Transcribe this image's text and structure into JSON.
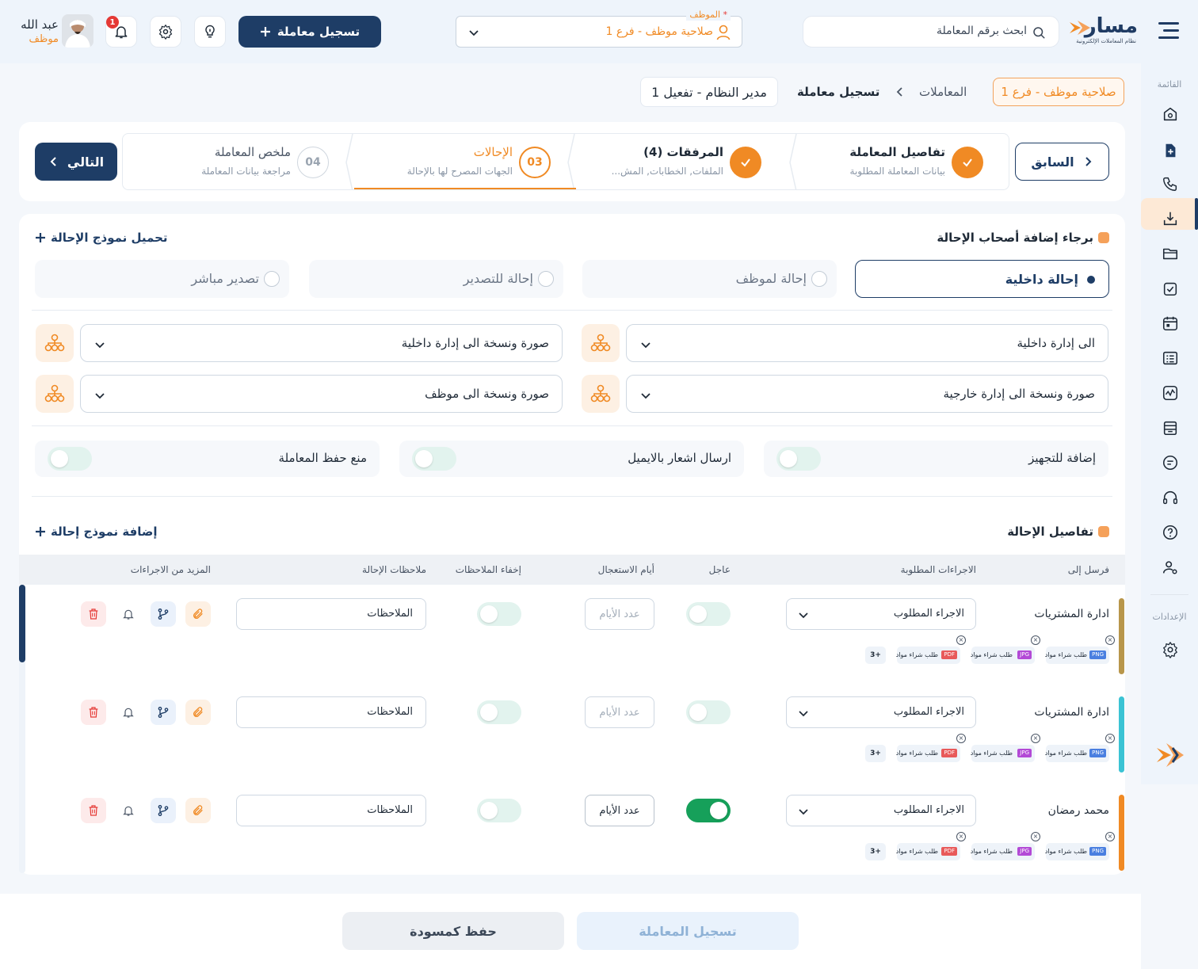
{
  "header": {
    "logo_text": "مسار",
    "logo_tagline": "نظام المعاملات الإلكترونية",
    "search_placeholder": "ابحث برقم المعاملة",
    "employee_field_label": "الموظف",
    "employee_field_value": "صلاحية موظف - فرع 1",
    "new_transaction_label": "تسجيل معاملة",
    "notifications_count": "1",
    "user_name": "عبد الله",
    "user_role": "موظف"
  },
  "sidebar": {
    "menu_caption": "القائمة",
    "settings_caption": "الإعدادات",
    "items": [
      "home-icon",
      "file-plus-icon",
      "phone-icon",
      "download-icon",
      "folder-icon",
      "clipboard-check-icon",
      "calendar-icon",
      "list-icon",
      "chart-icon",
      "archive-icon",
      "report-icon",
      "headset-icon",
      "help-icon",
      "users-settings-icon"
    ],
    "active_item": "file-plus-icon"
  },
  "breadcrumb": {
    "branch": "صلاحية موظف - فرع 1",
    "parent": "المعاملات",
    "current": "تسجيل معاملة",
    "role": "مدير النظام - تفعيل 1"
  },
  "stepper": {
    "prev_label": "السابق",
    "next_label": "التالي",
    "steps": [
      {
        "title": "تفاصيل المعاملة",
        "subtitle": "بيانات المعاملة المطلوبة",
        "state": "done"
      },
      {
        "title": "المرفقات (4)",
        "subtitle": "الملفات, الخطابات, المش...",
        "state": "done"
      },
      {
        "title": "الإحالات",
        "subtitle": "الجهات المصرح لها بالإحالة",
        "state": "active",
        "number": "03"
      },
      {
        "title": "ملخص المعاملة",
        "subtitle": "مراجعة بيانات المعاملة",
        "state": "pending",
        "number": "04"
      }
    ]
  },
  "referral": {
    "section_title": "برجاء إضافة أصحاب الإحالة",
    "load_template": "تحميل نموذج الإحالة",
    "types": [
      {
        "label": "إحالة داخلية",
        "selected": true
      },
      {
        "label": "إحالة لموظف",
        "selected": false
      },
      {
        "label": "إحالة للتصدير",
        "selected": false
      },
      {
        "label": "تصدير مباشر",
        "selected": false
      }
    ],
    "selects": {
      "to_internal": "الى إدارة داخلية",
      "cc_internal": "صورة ونسخة الى إدارة داخلية",
      "cc_external": "صورة ونسخة الى إدارة خارجية",
      "cc_employee": "صورة ونسخة الى موظف"
    },
    "toggles": [
      {
        "label": "إضافة للتجهيز",
        "on": false
      },
      {
        "label": "ارسال اشعار بالايميل",
        "on": false
      },
      {
        "label": "منع حفظ المعاملة",
        "on": false
      }
    ]
  },
  "details": {
    "section_title": "تفاصيل الإحالة",
    "add_template": "إضافة نموذج إحالة",
    "columns": {
      "send_to": "فرسل إلى",
      "actions_required": "الاجراءات المطلوبة",
      "urgent": "عاجل",
      "urgency_days": "أيام الاستعجال",
      "hide_notes": "إخفاء الملاحظات",
      "notes": "ملاحظات الإحالة",
      "more_actions": "المزيد من الاجراءات"
    },
    "action_placeholder": "الاجراء المطلوب",
    "days_placeholder": "عدد الأيام",
    "notes_placeholder": "الملاحظات",
    "chip_text": "طلب شراء مواد",
    "more_count": "+3",
    "rows": [
      {
        "name": "ادارة المشتريات",
        "urgent": false,
        "color": "#b8964a",
        "chips": [
          "PNG",
          "JPG",
          "PDF"
        ]
      },
      {
        "name": "ادارة المشتريات",
        "urgent": false,
        "color": "#3bc3d4",
        "chips": [
          "PNG",
          "JPG",
          "PDF"
        ]
      },
      {
        "name": "محمد رمضان",
        "urgent": true,
        "color": "#f08a24",
        "chips": [
          "PNG",
          "JPG",
          "PDF"
        ]
      }
    ]
  },
  "footer": {
    "submit_label": "تسجيل المعاملة",
    "draft_label": "حفظ كمسودة"
  },
  "colors": {
    "brand": "#1e3d66",
    "accent": "#f08a24",
    "success": "#16a05a"
  }
}
